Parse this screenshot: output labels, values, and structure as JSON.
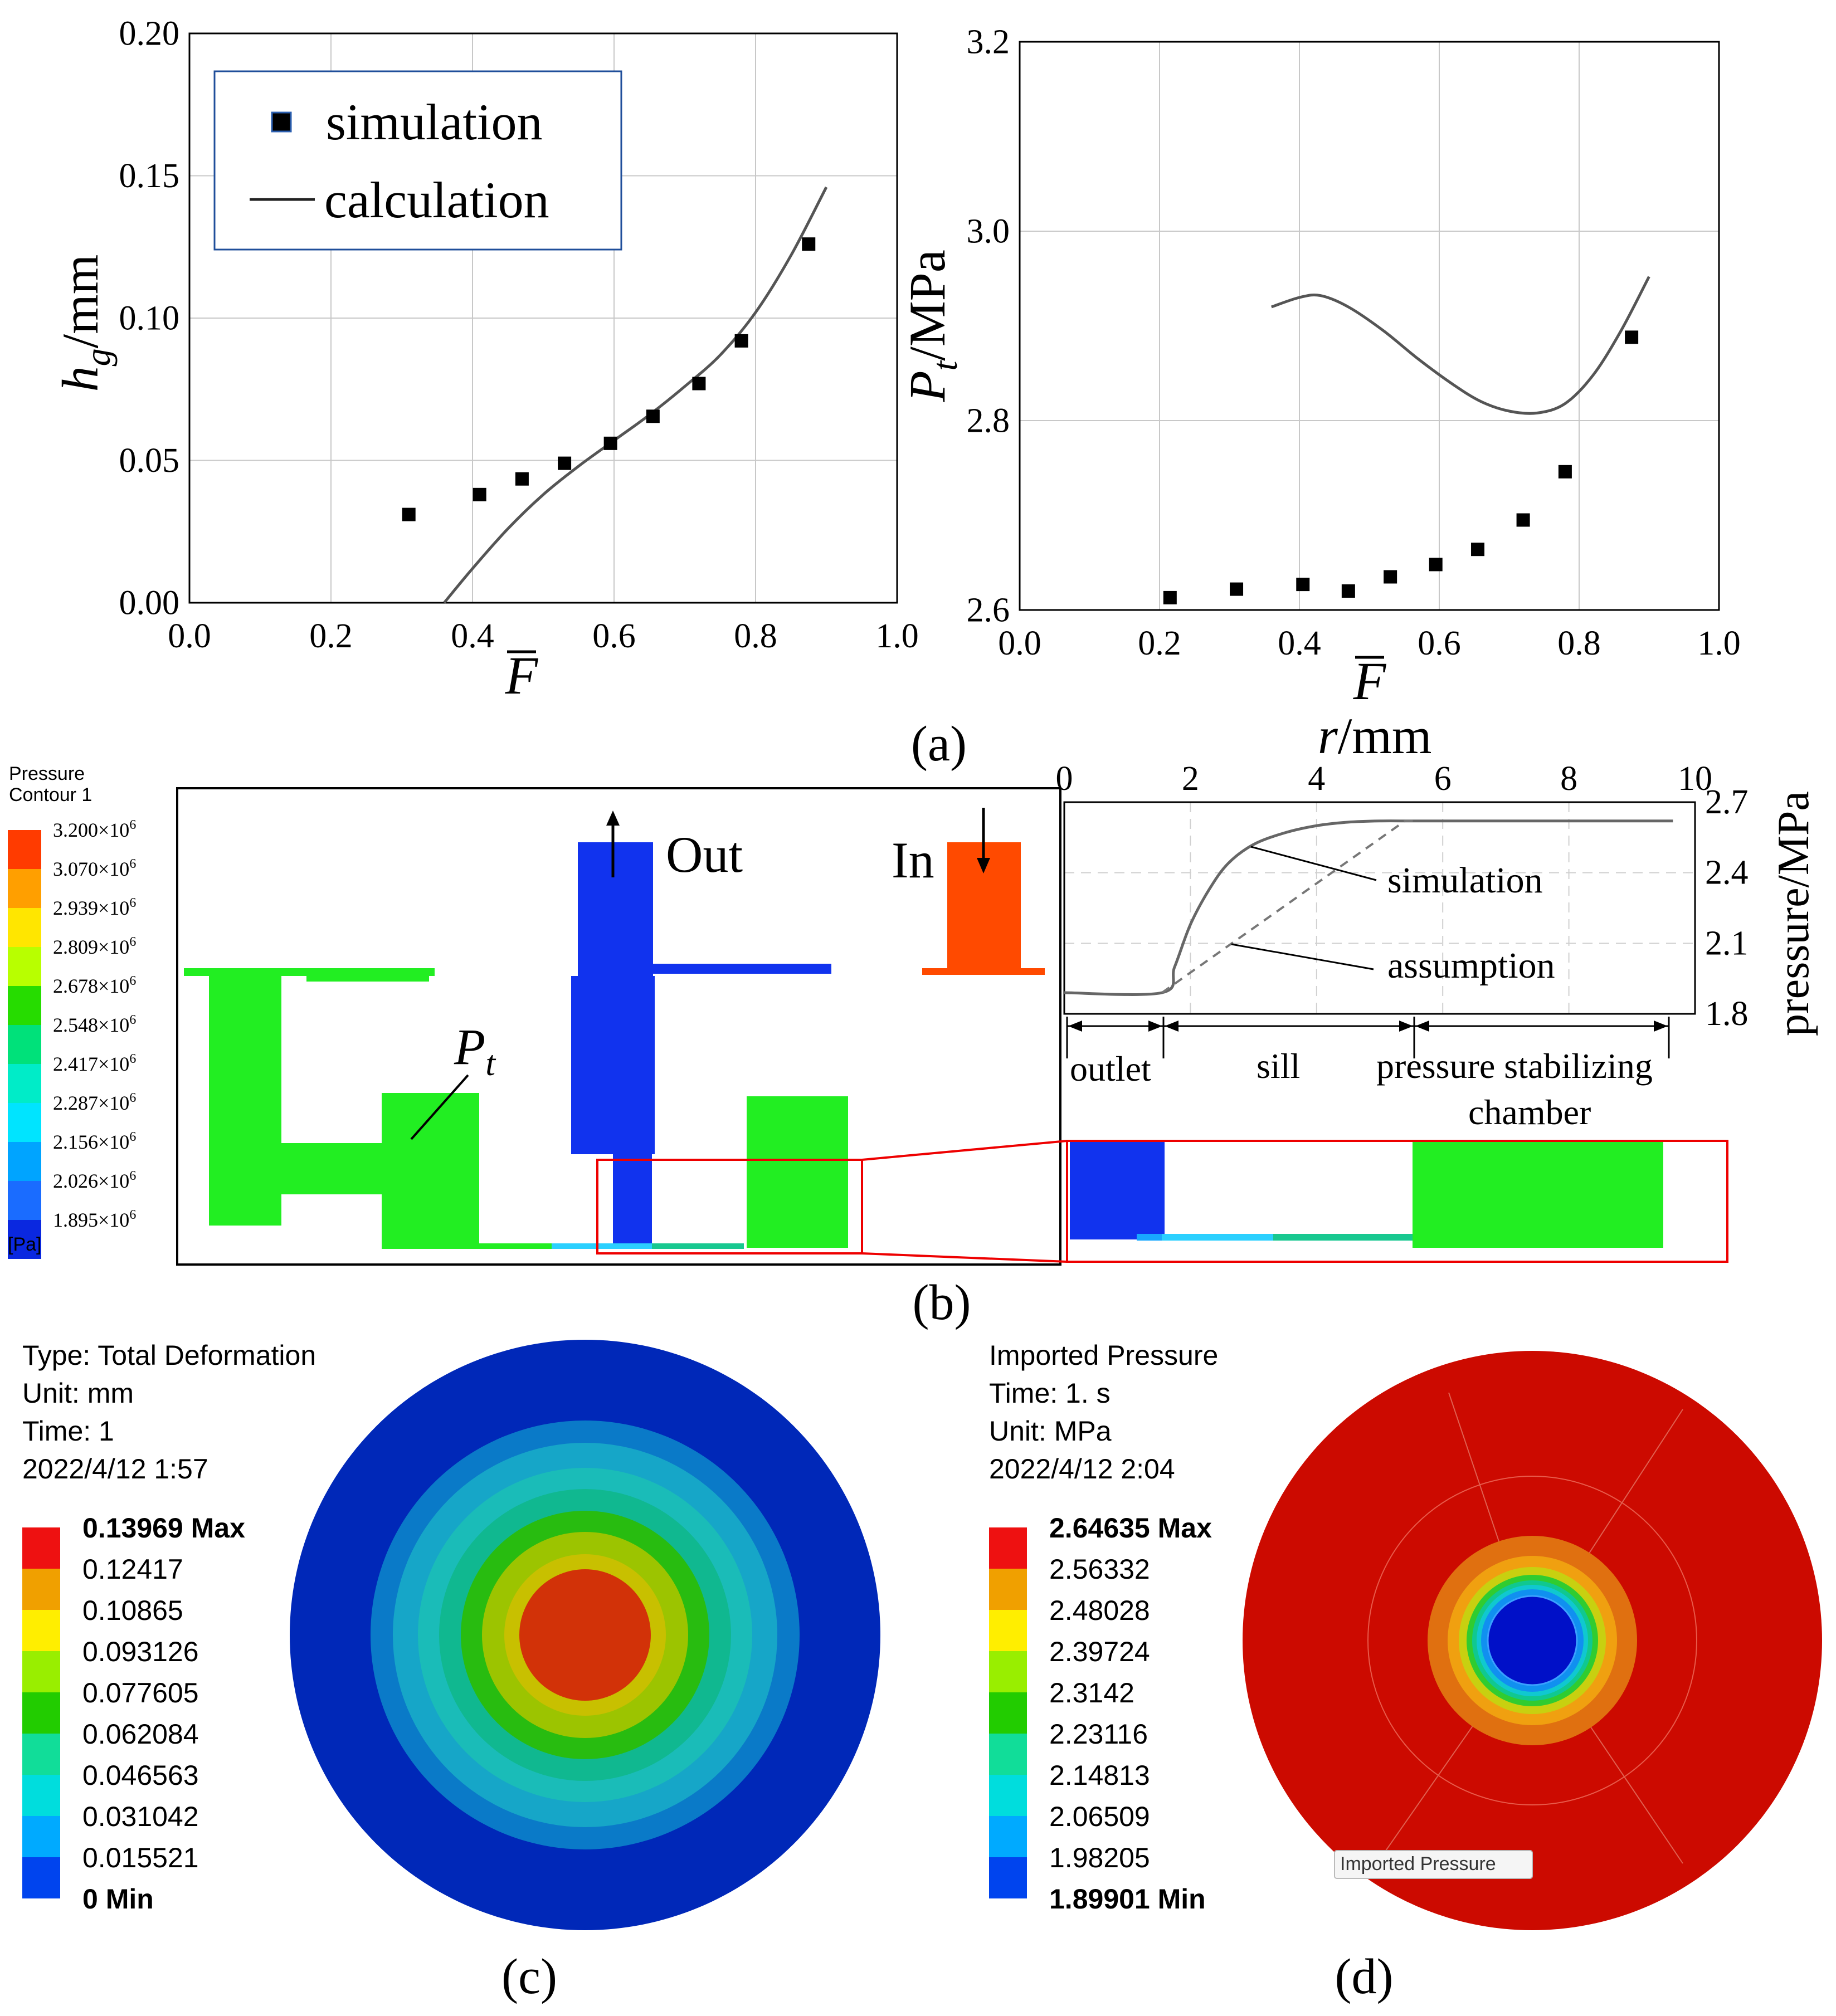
{
  "chart_data": [
    {
      "id": "a1",
      "type": "scatter+line",
      "xlabel_html": "F̄",
      "ylabel_main": "h",
      "ylabel_sub": "g",
      "ylabel_unit": "/mm",
      "xlim": [
        0,
        1
      ],
      "ylim": [
        0,
        0.2
      ],
      "xticks": [
        "0.0",
        "0.2",
        "0.4",
        "0.6",
        "0.8",
        "1.0"
      ],
      "yticks": [
        "0.00",
        "0.05",
        "0.10",
        "0.15",
        "0.20"
      ],
      "legend": {
        "marker_label": "simulation",
        "line_label": "calculation"
      },
      "simulation": {
        "x": [
          0.31,
          0.41,
          0.47,
          0.53,
          0.595,
          0.655,
          0.72,
          0.78,
          0.875
        ],
        "y": [
          0.031,
          0.038,
          0.0435,
          0.049,
          0.056,
          0.0655,
          0.077,
          0.092,
          0.126
        ]
      },
      "calculation": {
        "x": [
          0.36,
          0.4,
          0.45,
          0.5,
          0.55,
          0.6,
          0.65,
          0.7,
          0.75,
          0.8,
          0.85,
          0.9
        ],
        "y": [
          0.0,
          0.012,
          0.026,
          0.038,
          0.048,
          0.057,
          0.066,
          0.076,
          0.087,
          0.102,
          0.122,
          0.146
        ]
      }
    },
    {
      "id": "a2",
      "type": "scatter+line",
      "xlabel_html": "F̄",
      "ylabel_main": "P",
      "ylabel_sub": "t",
      "ylabel_unit": "/MPa",
      "xlim": [
        0,
        1
      ],
      "ylim": [
        2.6,
        3.2
      ],
      "xticks": [
        "0.0",
        "0.2",
        "0.4",
        "0.6",
        "0.8",
        "1.0"
      ],
      "yticks": [
        "2.6",
        "2.8",
        "3.0",
        "3.2"
      ],
      "simulation": {
        "x": [
          0.215,
          0.31,
          0.405,
          0.47,
          0.53,
          0.595,
          0.655,
          0.72,
          0.78,
          0.875
        ],
        "y": [
          2.613,
          2.622,
          2.627,
          2.62,
          2.635,
          2.648,
          2.664,
          2.695,
          2.746,
          2.888
        ]
      },
      "calculation": {
        "x": [
          0.36,
          0.4,
          0.43,
          0.47,
          0.52,
          0.57,
          0.62,
          0.66,
          0.7,
          0.74,
          0.78,
          0.82,
          0.86,
          0.9
        ],
        "y": [
          2.92,
          2.93,
          2.932,
          2.92,
          2.895,
          2.865,
          2.838,
          2.82,
          2.81,
          2.808,
          2.818,
          2.848,
          2.895,
          2.952
        ]
      }
    },
    {
      "id": "b-inset",
      "type": "line",
      "xlabel_main": "r",
      "xlabel_unit": "/mm",
      "ylabel": "pressure/MPa",
      "xlim": [
        0,
        10
      ],
      "ylim": [
        1.8,
        2.7
      ],
      "xticks": [
        "0",
        "2",
        "4",
        "6",
        "8",
        "10"
      ],
      "yticks": [
        "1.8",
        "2.1",
        "2.4",
        "2.7"
      ],
      "series": [
        {
          "name": "simulation",
          "x": [
            0,
            1.55,
            1.75,
            2.0,
            2.3,
            2.6,
            3.0,
            3.5,
            4.0,
            4.5,
            5.0,
            5.5,
            6.0,
            8.0,
            9.65
          ],
          "y": [
            1.89,
            1.89,
            2.0,
            2.18,
            2.33,
            2.44,
            2.52,
            2.57,
            2.6,
            2.615,
            2.62,
            2.62,
            2.62,
            2.62,
            2.62
          ]
        },
        {
          "name": "assumption",
          "x": [
            1.55,
            5.4,
            5.6
          ],
          "y": [
            1.89,
            2.62,
            2.62
          ]
        }
      ],
      "annotations": [
        "simulation",
        "assumption"
      ],
      "regions": [
        "outlet",
        "sill",
        "pressure stabilizing",
        "chamber"
      ]
    }
  ],
  "panel_labels": {
    "a": "(a)",
    "b": "(b)",
    "c": "(c)",
    "d": "(d)"
  },
  "contour_b": {
    "title1": "Pressure",
    "title2": "Contour 1",
    "unit": "[Pa]",
    "levels": [
      "3.200×10",
      "3.070×10",
      "2.939×10",
      "2.809×10",
      "2.678×10",
      "2.548×10",
      "2.417×10",
      "2.287×10",
      "2.156×10",
      "2.026×10",
      "1.895×10"
    ],
    "exponent": "6",
    "colors": [
      "#ff3b00",
      "#ff9f00",
      "#ffe600",
      "#b8ff00",
      "#26dc00",
      "#00e17a",
      "#00ecc8",
      "#00e4ff",
      "#00a4ff",
      "#1a6cff",
      "#0a28e0"
    ],
    "labels": {
      "out": "Out",
      "in": "In",
      "pt_main": "P",
      "pt_sub": "t"
    }
  },
  "deformation_c": {
    "type_line": "Type: Total Deformation",
    "unit_line": "Unit: mm",
    "time_line": "Time: 1",
    "date_line": "2022/4/12 1:57",
    "levels": [
      "0.13969 Max",
      "0.12417",
      "0.10865",
      "0.093126",
      "0.077605",
      "0.062084",
      "0.046563",
      "0.031042",
      "0.015521",
      "0 Min"
    ],
    "colors": [
      "#ee1111",
      "#f0a000",
      "#ffee00",
      "#99ee00",
      "#22cc00",
      "#11dd99",
      "#00dddd",
      "#00aaff",
      "#0044ee"
    ],
    "rings": [
      "#0028b8",
      "#0a7ac8",
      "#16a6c8",
      "#1abcb8",
      "#10b890",
      "#28bc10",
      "#9cc400",
      "#c8c000",
      "#d08a00",
      "#d23208"
    ]
  },
  "pressure_d": {
    "type_line": "Imported Pressure",
    "time_line": "Time: 1. s",
    "unit_line": "Unit: MPa",
    "date_line": "2022/4/12 2:04",
    "levels": [
      "2.64635 Max",
      "2.56332",
      "2.48028",
      "2.39724",
      "2.3142",
      "2.23116",
      "2.14813",
      "2.06509",
      "1.98205",
      "1.89901 Min"
    ],
    "colors": [
      "#ee1111",
      "#f0a000",
      "#ffee00",
      "#99ee00",
      "#22cc00",
      "#11dd99",
      "#00dddd",
      "#00aaff",
      "#0044ee"
    ],
    "tag": "Imported Pressure"
  }
}
